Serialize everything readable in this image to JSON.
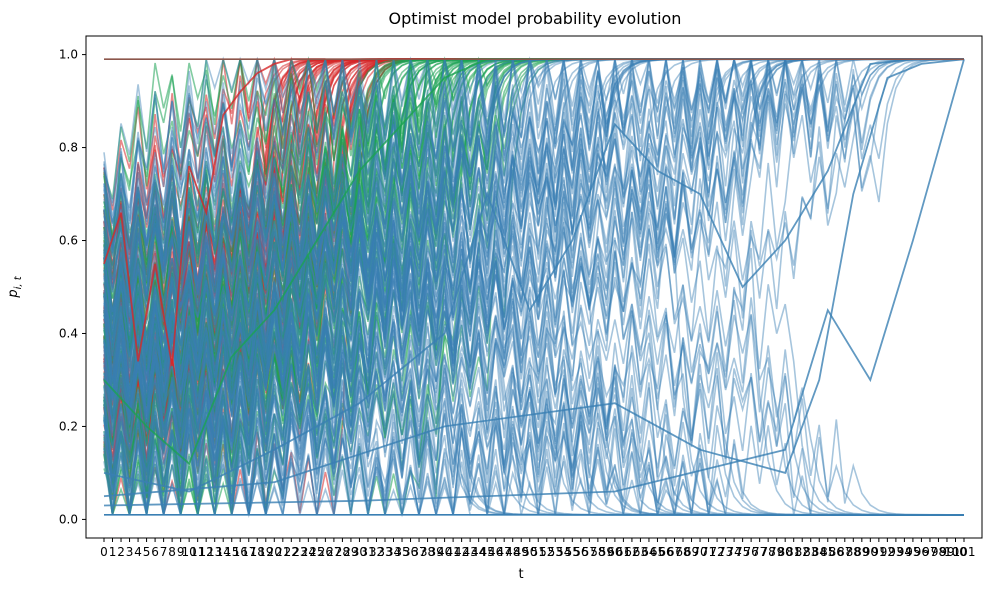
{
  "chart_data": {
    "type": "line",
    "title": "Optimist model probability evolution",
    "xlabel": "t",
    "ylabel": "p_{i,t}",
    "xlim": [
      0,
      101
    ],
    "ylim": [
      -0.04,
      1.04
    ],
    "yticks": [
      0.0,
      0.2,
      0.4,
      0.6,
      0.8,
      1.0
    ],
    "ytick_labels": [
      "0.0",
      "0.2",
      "0.4",
      "0.6",
      "0.8",
      "1.0"
    ],
    "xtick_labels": [
      "0",
      "1",
      "2",
      "3",
      "4",
      "5",
      "6",
      "7",
      "8",
      "9",
      "10",
      "11",
      "12",
      "13",
      "14",
      "15",
      "16",
      "17",
      "18",
      "19",
      "20",
      "21",
      "22",
      "23",
      "24",
      "25",
      "26",
      "27",
      "28",
      "29",
      "30",
      "31",
      "32",
      "33",
      "34",
      "35",
      "36",
      "37",
      "38",
      "39",
      "40",
      "41",
      "42",
      "43",
      "44",
      "45",
      "46",
      "47",
      "48",
      "49",
      "50",
      "51",
      "52",
      "53",
      "54",
      "55",
      "56",
      "57",
      "58",
      "59",
      "60",
      "61",
      "62",
      "63",
      "64",
      "65",
      "66",
      "67",
      "68",
      "69",
      "70",
      "71",
      "72",
      "73",
      "74",
      "75",
      "76",
      "77",
      "78",
      "79",
      "80",
      "81",
      "82",
      "83",
      "84",
      "85",
      "86",
      "87",
      "88",
      "89",
      "90",
      "91",
      "92",
      "93",
      "94",
      "95",
      "96",
      "97",
      "98",
      "99",
      "100",
      "101"
    ],
    "grid": false,
    "series_groups": [
      {
        "color": "#d62728",
        "description_values": "trajectories converging to 0.99 by about t=25",
        "n_lines": 60,
        "upper": 0.99,
        "lower": 0.01,
        "converge_t": [
          18,
          30
        ]
      },
      {
        "color": "#1ca353",
        "description_values": "trajectories converging to 0.99 by about t=45",
        "n_lines": 60,
        "upper": 0.99,
        "lower": 0.01,
        "converge_t": [
          30,
          48
        ]
      },
      {
        "color": "#3a7fb3",
        "description_values": "trajectories converging to 0.99 or 0.01 between t=40 and t=90",
        "n_lines": 90,
        "upper": 0.99,
        "lower": 0.01,
        "converge_t": [
          40,
          92
        ]
      }
    ],
    "sample_series": [
      {
        "color": "#d62728",
        "x": [
          0,
          2,
          4,
          6,
          8,
          10,
          12,
          14,
          16,
          18,
          20,
          22,
          24,
          26
        ],
        "y": [
          0.55,
          0.66,
          0.34,
          0.55,
          0.33,
          0.76,
          0.66,
          0.87,
          0.92,
          0.96,
          0.98,
          0.99,
          0.99,
          0.99
        ]
      },
      {
        "color": "#1ca353",
        "x": [
          0,
          5,
          10,
          15,
          20,
          25,
          30,
          35,
          40,
          45,
          50
        ],
        "y": [
          0.3,
          0.2,
          0.12,
          0.35,
          0.45,
          0.6,
          0.75,
          0.85,
          0.95,
          0.99,
          0.99
        ]
      },
      {
        "color": "#3a7fb3",
        "x": [
          0,
          10,
          20,
          30,
          40,
          45,
          50,
          55,
          60,
          65,
          70,
          75,
          80,
          85,
          90,
          95,
          101
        ],
        "y": [
          0.1,
          0.06,
          0.15,
          0.25,
          0.4,
          0.7,
          0.45,
          0.6,
          0.85,
          0.75,
          0.7,
          0.5,
          0.6,
          0.75,
          0.98,
          0.99,
          0.99
        ]
      },
      {
        "color": "#3a7fb3",
        "x": [
          0,
          20,
          40,
          60,
          70,
          80,
          84,
          88,
          92,
          96,
          101
        ],
        "y": [
          0.05,
          0.08,
          0.2,
          0.25,
          0.15,
          0.1,
          0.3,
          0.7,
          0.95,
          0.98,
          0.99
        ]
      },
      {
        "color": "#3a7fb3",
        "x": [
          0,
          30,
          60,
          80,
          85,
          90,
          95,
          101
        ],
        "y": [
          0.03,
          0.04,
          0.06,
          0.15,
          0.45,
          0.3,
          0.6,
          0.99
        ]
      }
    ]
  }
}
